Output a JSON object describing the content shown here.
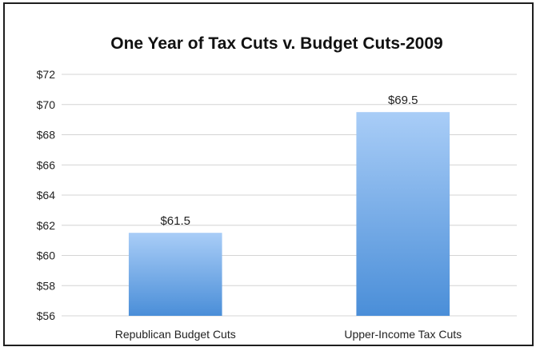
{
  "chart_data": {
    "type": "bar",
    "title": "One Year of Tax Cuts v. Budget Cuts-2009",
    "categories": [
      "Republican Budget Cuts",
      "Upper-Income Tax Cuts"
    ],
    "values": [
      61.5,
      69.5
    ],
    "data_labels": [
      "$61.5",
      "$69.5"
    ],
    "y_ticks": [
      56,
      58,
      60,
      62,
      64,
      66,
      68,
      70,
      72
    ],
    "y_tick_labels": [
      "$56",
      "$58",
      "$60",
      "$62",
      "$64",
      "$66",
      "$68",
      "$70",
      "$72"
    ],
    "ylim": [
      56,
      72
    ],
    "xlabel": "",
    "ylabel": "",
    "grid": true,
    "legend": "none",
    "colors": {
      "bar_top": "#a9cdf7",
      "bar_bottom": "#4a8ed8",
      "grid": "#d4d4d4",
      "border": "#1e1e1e"
    }
  }
}
